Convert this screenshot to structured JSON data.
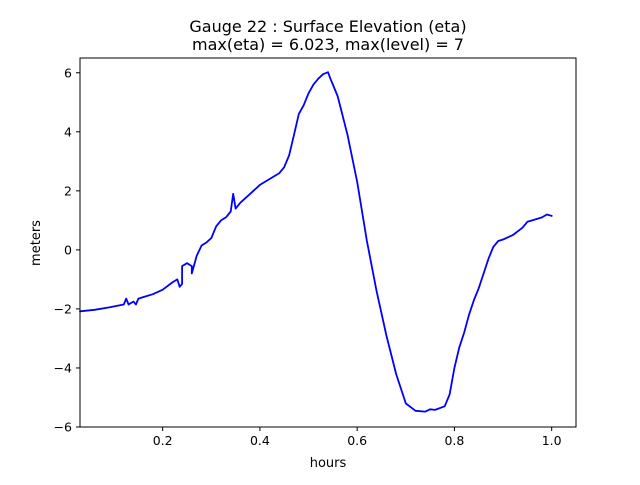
{
  "chart_data": {
    "type": "line",
    "title": [
      "Gauge 22 : Surface Elevation (eta)",
      "max(eta) =   6.023,    max(level) = 7"
    ],
    "xlabel": "hours",
    "ylabel": "meters",
    "xlim": [
      0.03,
      1.05
    ],
    "ylim": [
      -6,
      6.5
    ],
    "xticks": [
      0.2,
      0.4,
      0.6,
      0.8,
      1.0
    ],
    "xtick_labels": [
      "0.2",
      "0.4",
      "0.6",
      "0.8",
      "1.0"
    ],
    "yticks": [
      -6,
      -4,
      -2,
      0,
      2,
      4,
      6
    ],
    "ytick_labels": [
      "−6",
      "−4",
      "−2",
      "0",
      "2",
      "4",
      "6"
    ],
    "grid": false,
    "series": [
      {
        "name": "eta",
        "color": "#0000ff",
        "x": [
          0.03,
          0.06,
          0.09,
          0.12,
          0.125,
          0.13,
          0.14,
          0.145,
          0.15,
          0.16,
          0.18,
          0.2,
          0.22,
          0.23,
          0.235,
          0.24,
          0.24,
          0.25,
          0.26,
          0.26,
          0.27,
          0.28,
          0.29,
          0.3,
          0.31,
          0.32,
          0.33,
          0.34,
          0.345,
          0.35,
          0.36,
          0.38,
          0.4,
          0.42,
          0.44,
          0.45,
          0.46,
          0.47,
          0.48,
          0.49,
          0.5,
          0.51,
          0.52,
          0.53,
          0.54,
          0.545,
          0.55,
          0.56,
          0.58,
          0.6,
          0.62,
          0.64,
          0.66,
          0.68,
          0.7,
          0.72,
          0.74,
          0.75,
          0.76,
          0.78,
          0.79,
          0.8,
          0.81,
          0.82,
          0.83,
          0.84,
          0.85,
          0.86,
          0.87,
          0.88,
          0.89,
          0.9,
          0.92,
          0.94,
          0.95,
          0.96,
          0.98,
          0.99,
          1.0
        ],
        "y": [
          -2.08,
          -2.03,
          -1.95,
          -1.85,
          -1.65,
          -1.85,
          -1.75,
          -1.85,
          -1.65,
          -1.6,
          -1.5,
          -1.35,
          -1.1,
          -1.0,
          -1.25,
          -1.15,
          -0.55,
          -0.45,
          -0.55,
          -0.8,
          -0.2,
          0.15,
          0.25,
          0.4,
          0.8,
          1.0,
          1.1,
          1.3,
          1.9,
          1.4,
          1.6,
          1.9,
          2.2,
          2.4,
          2.6,
          2.8,
          3.2,
          3.9,
          4.6,
          4.9,
          5.3,
          5.6,
          5.8,
          5.95,
          6.02,
          5.8,
          5.6,
          5.2,
          3.9,
          2.3,
          0.3,
          -1.4,
          -2.9,
          -4.2,
          -5.2,
          -5.45,
          -5.48,
          -5.4,
          -5.42,
          -5.3,
          -4.9,
          -4.0,
          -3.3,
          -2.8,
          -2.2,
          -1.7,
          -1.3,
          -0.8,
          -0.3,
          0.1,
          0.3,
          0.35,
          0.5,
          0.75,
          0.95,
          1.0,
          1.1,
          1.2,
          1.15
        ]
      }
    ]
  }
}
